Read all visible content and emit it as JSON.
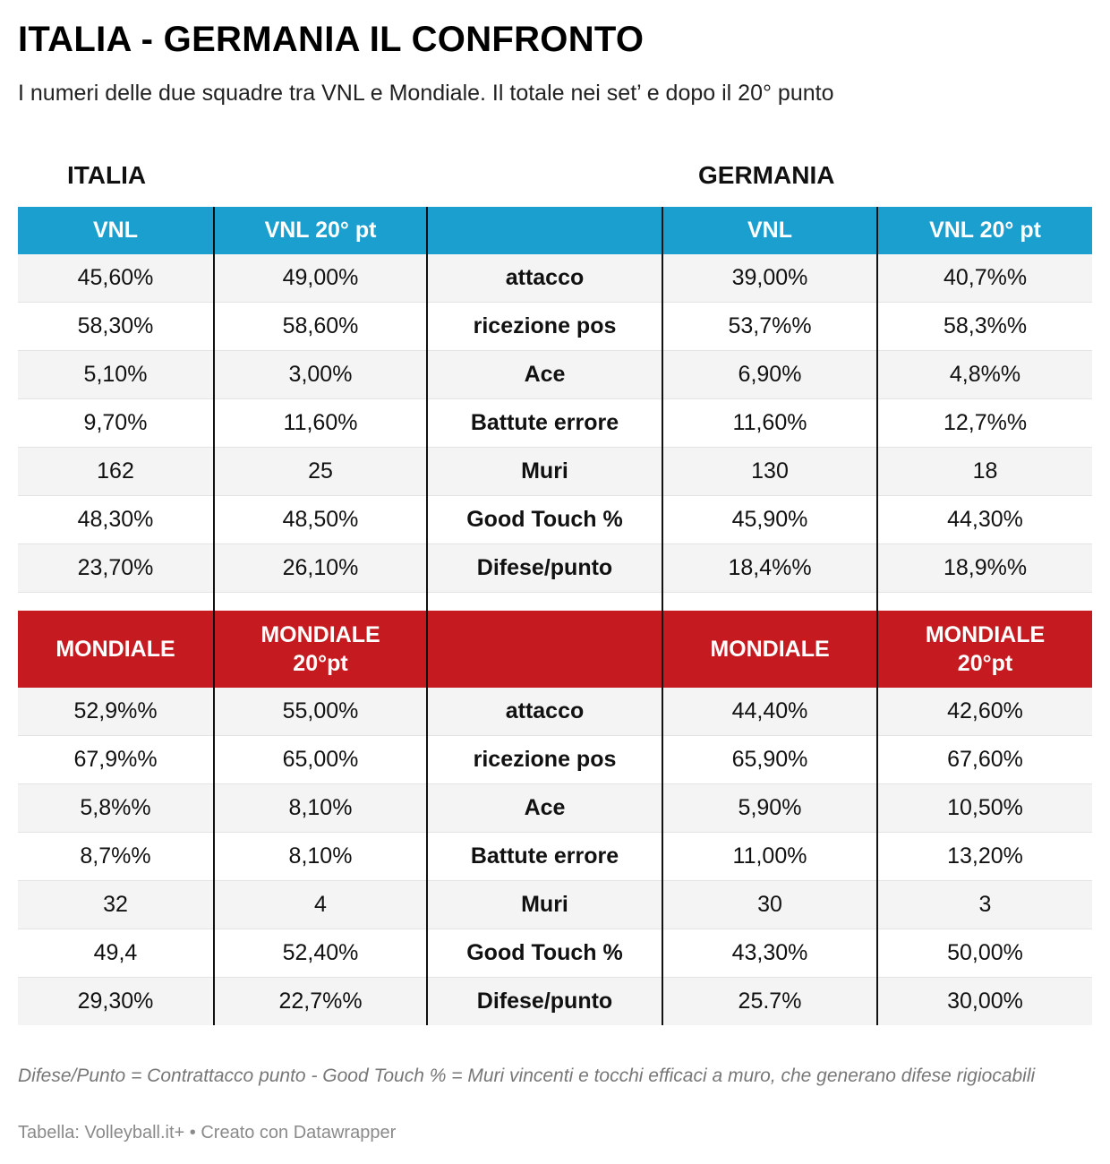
{
  "title": "ITALIA - GERMANIA IL CONFRONTO",
  "subtitle": "I numeri delle due squadre tra VNL e Mondiale. Il totale nei set’ e dopo il 20° punto",
  "teams": {
    "left": "ITALIA",
    "right": "GERMANIA"
  },
  "colors": {
    "vnl_header": "#1a9fcf",
    "mondiale_header": "#c51a1f",
    "stripe": "#f4f4f4"
  },
  "chart_data": {
    "type": "table",
    "sections": [
      {
        "headers": [
          "VNL",
          "VNL 20° pt",
          "",
          "VNL",
          "VNL 20° pt"
        ],
        "rows": [
          [
            "45,60%",
            "49,00%",
            "attacco",
            "39,00%",
            "40,7%%"
          ],
          [
            "58,30%",
            "58,60%",
            "ricezione pos",
            "53,7%%",
            "58,3%%"
          ],
          [
            "5,10%",
            "3,00%",
            "Ace",
            "6,90%",
            "4,8%%"
          ],
          [
            "9,70%",
            "11,60%",
            "Battute errore",
            "11,60%",
            "12,7%%"
          ],
          [
            "162",
            "25",
            "Muri",
            "130",
            "18"
          ],
          [
            "48,30%",
            "48,50%",
            "Good Touch %",
            "45,90%",
            "44,30%"
          ],
          [
            "23,70%",
            "26,10%",
            "Difese/punto",
            "18,4%%",
            "18,9%%"
          ]
        ]
      },
      {
        "headers": [
          "MONDIALE",
          "MONDIALE 20°pt",
          "",
          "MONDIALE",
          "MONDIALE 20°pt"
        ],
        "rows": [
          [
            "52,9%%",
            "55,00%",
            "attacco",
            "44,40%",
            "42,60%"
          ],
          [
            "67,9%%",
            "65,00%",
            "ricezione pos",
            "65,90%",
            "67,60%"
          ],
          [
            "5,8%%",
            "8,10%",
            "Ace",
            "5,90%",
            "10,50%"
          ],
          [
            "8,7%%",
            "8,10%",
            "Battute errore",
            "11,00%",
            "13,20%"
          ],
          [
            "32",
            "4",
            "Muri",
            "30",
            "3"
          ],
          [
            "49,4",
            "52,40%",
            "Good Touch %",
            "43,30%",
            "50,00%"
          ],
          [
            "29,30%",
            "22,7%%",
            "Difese/punto",
            "25.7%",
            "30,00%"
          ]
        ]
      }
    ]
  },
  "notes": "Difese/Punto = Contrattacco punto - Good Touch % = Muri vincenti e tocchi efficaci a muro, che generano difese rigiocabili",
  "source": "Tabella: Volleyball.it+  • Creato con Datawrapper"
}
